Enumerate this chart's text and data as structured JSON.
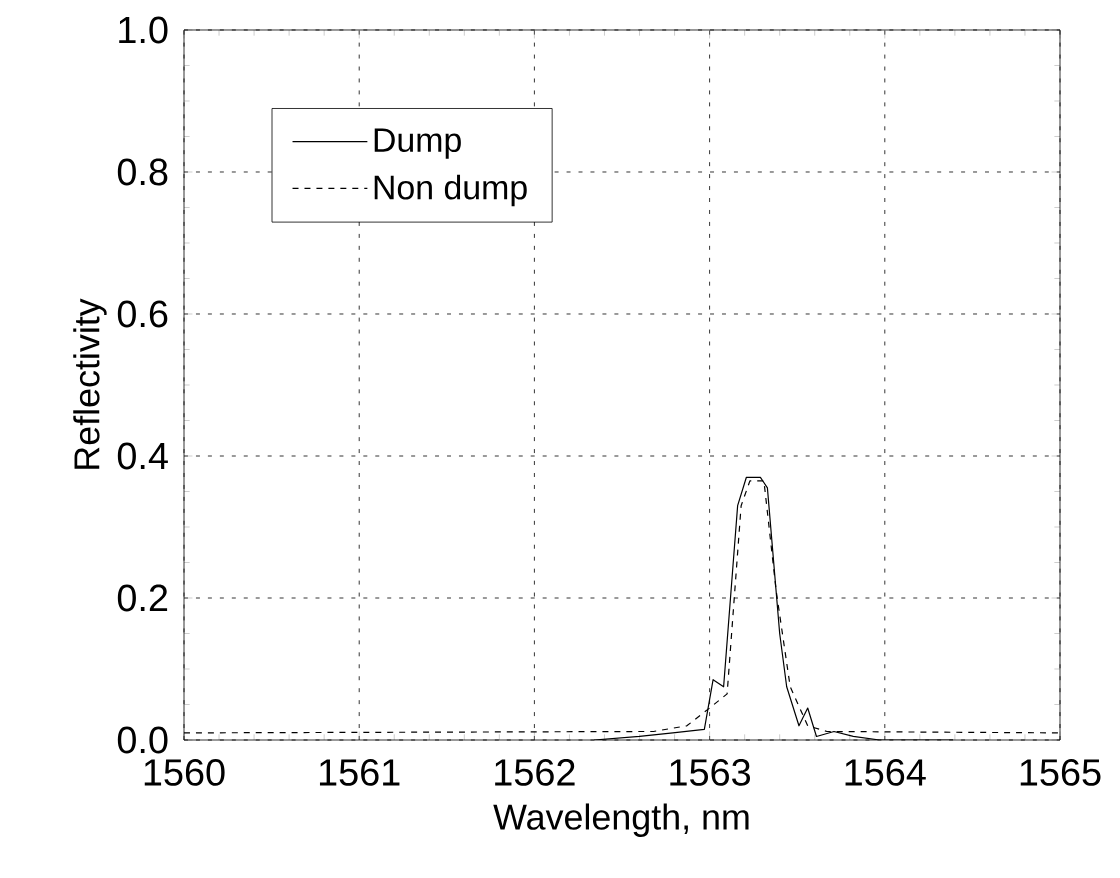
{
  "chart_data": {
    "type": "line",
    "xlabel": "Wavelength, nm",
    "ylabel": "Reflectivity",
    "xlim": [
      1560,
      1565
    ],
    "xticks": [
      1560,
      1561,
      1562,
      1563,
      1564,
      1565
    ],
    "ylim": [
      0,
      1
    ],
    "yticks": [
      {
        "value": 0,
        "label": "0.0"
      },
      {
        "value": 0.2,
        "label": "0.2"
      },
      {
        "value": 0.4,
        "label": "0.4"
      },
      {
        "value": 0.6,
        "label": "0.6"
      },
      {
        "value": 0.8,
        "label": "0.8"
      },
      {
        "value": 1,
        "label": "1.0"
      }
    ],
    "grid": true,
    "legend": "top left",
    "series": [
      {
        "name": "Dump",
        "color": "#000000",
        "line_style": "solid",
        "x": [
          1562.34,
          1562.6,
          1562.79,
          1562.97,
          1563.02,
          1563.08,
          1563.16,
          1563.21,
          1563.29,
          1563.33,
          1563.4,
          1563.44,
          1563.51,
          1563.56,
          1563.61,
          1563.71,
          1563.82,
          1563.97,
          1564.39
        ],
        "values": [
          0,
          0.005,
          0.01,
          0.015,
          0.085,
          0.075,
          0.33,
          0.37,
          0.37,
          0.355,
          0.15,
          0.075,
          0.02,
          0.045,
          0.005,
          0.012,
          0.005,
          0,
          0
        ]
      },
      {
        "name": "Non dump",
        "color": "#000000",
        "line_style": "dashed",
        "x": [
          1560,
          1562.68,
          1562.87,
          1563.0,
          1563.1,
          1563.18,
          1563.23,
          1563.31,
          1563.38,
          1563.46,
          1563.56,
          1563.67,
          1565
        ],
        "values": [
          0.01,
          0.012,
          0.02,
          0.045,
          0.065,
          0.33,
          0.365,
          0.365,
          0.21,
          0.075,
          0.02,
          0.012,
          0.01
        ]
      }
    ]
  }
}
